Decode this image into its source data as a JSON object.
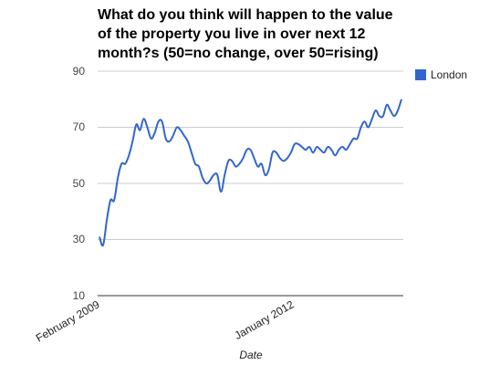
{
  "chart_data": {
    "type": "line",
    "title_lines": [
      "What do you think will happen to the value",
      "of the property you live in over next 12",
      "month?s (50=no change, over 50=rising)"
    ],
    "xlabel": "Date",
    "ylabel": "",
    "ylim": [
      10,
      90
    ],
    "y_ticks": [
      "90",
      "70",
      "50",
      "30",
      "10"
    ],
    "x_ticks": [
      "February 2009",
      "January 2012"
    ],
    "grid": true,
    "legend_position": "right",
    "series": [
      {
        "name": "London",
        "color": "#3366cc",
        "values": [
          31,
          28,
          37,
          44,
          44,
          52,
          57,
          57,
          60,
          65,
          71,
          69,
          73,
          70,
          66,
          68,
          72,
          72,
          66,
          65,
          67,
          70,
          69,
          67,
          65,
          61,
          57,
          56,
          52,
          50,
          51,
          53,
          53,
          47,
          53,
          58,
          58,
          56,
          57,
          59,
          62,
          62,
          59,
          56,
          57,
          53,
          55,
          61,
          61,
          59,
          58,
          59,
          61,
          64,
          64,
          63,
          62,
          63,
          61,
          63,
          62,
          61,
          63,
          62,
          60,
          62,
          63,
          62,
          64,
          66,
          66,
          70,
          72,
          70,
          73,
          76,
          74,
          74,
          78,
          76,
          74,
          76,
          80
        ]
      }
    ]
  }
}
